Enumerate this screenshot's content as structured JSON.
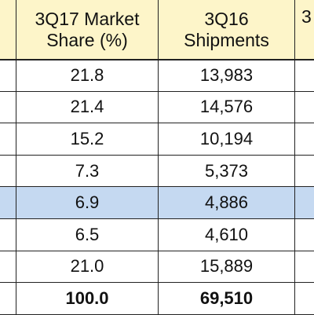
{
  "chart_data": {
    "type": "table",
    "columns": [
      {
        "header_line1": "3Q17 Market",
        "header_line2": "Share (%)"
      },
      {
        "header_line1": "3Q16",
        "header_line2": "Shipments"
      },
      {
        "header_line1": "3",
        "header_line2": ""
      }
    ],
    "rows": [
      {
        "share": "21.8",
        "shipments": "13,983",
        "highlight": false,
        "bold": false
      },
      {
        "share": "21.4",
        "shipments": "14,576",
        "highlight": false,
        "bold": false
      },
      {
        "share": "15.2",
        "shipments": "10,194",
        "highlight": false,
        "bold": false
      },
      {
        "share": "7.3",
        "shipments": "5,373",
        "highlight": false,
        "bold": false
      },
      {
        "share": "6.9",
        "shipments": "4,886",
        "highlight": true,
        "bold": false
      },
      {
        "share": "6.5",
        "shipments": "4,610",
        "highlight": false,
        "bold": false
      },
      {
        "share": "21.0",
        "shipments": "15,889",
        "highlight": false,
        "bold": false
      },
      {
        "share": "100.0",
        "shipments": "69,510",
        "highlight": false,
        "bold": true
      }
    ],
    "colors": {
      "header_bg": "#fdf5c9",
      "highlight_bg": "#c5d9f1",
      "grid": "#222222"
    }
  }
}
